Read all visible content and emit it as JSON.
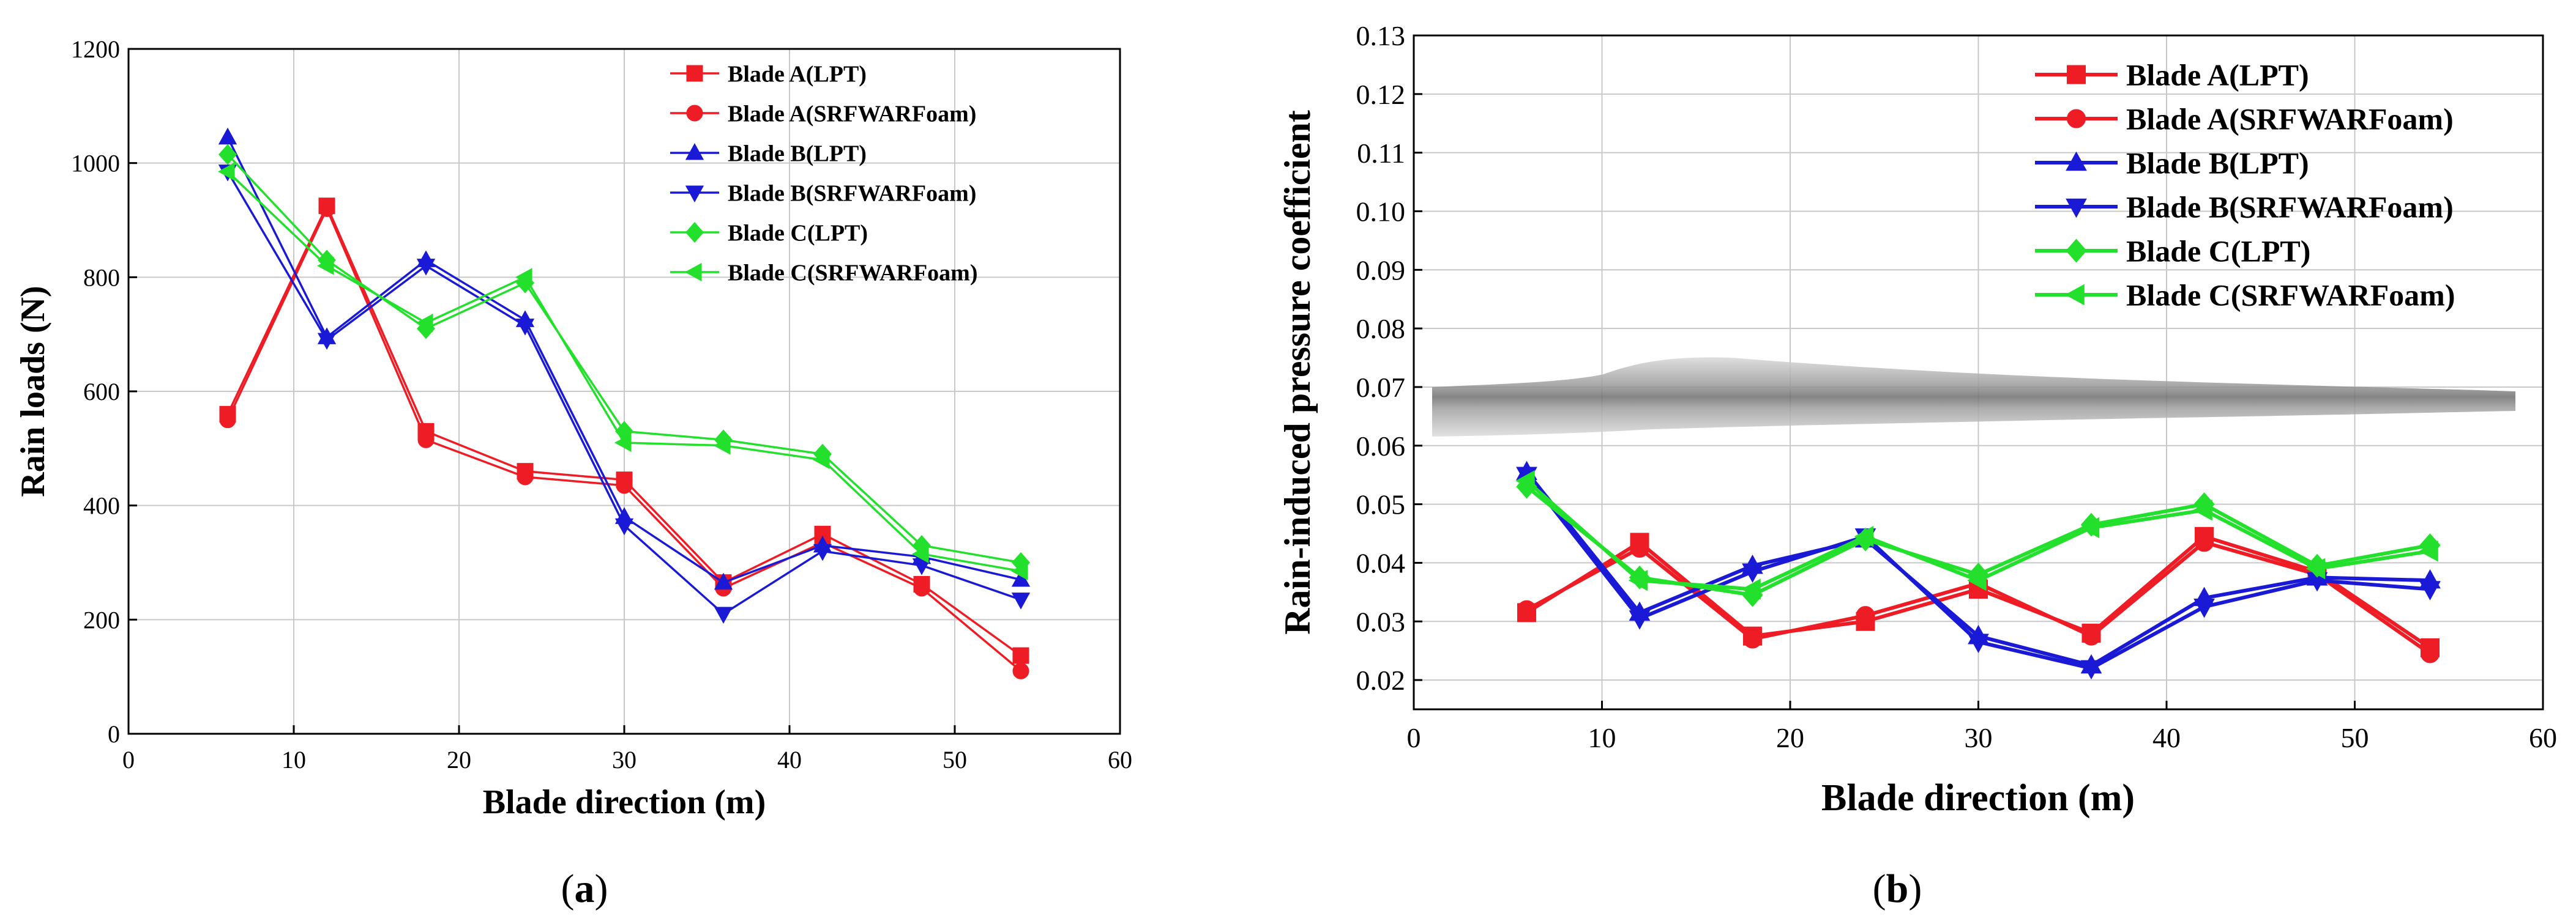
{
  "colors": {
    "red": "#ee1c25",
    "blue": "#1a1ad6",
    "green": "#22e02b"
  },
  "chart_data": [
    {
      "type": "line",
      "caption": "a",
      "xlabel": "Blade direction (m)",
      "ylabel": "Rain loads (N)",
      "xlim": [
        0,
        60
      ],
      "ylim": [
        0,
        1200
      ],
      "xticks": [
        0,
        10,
        20,
        30,
        40,
        50,
        60
      ],
      "yticks": [
        0,
        200,
        400,
        600,
        800,
        1000,
        1200
      ],
      "grid": true,
      "legend": "top-right",
      "x": [
        6,
        12,
        18,
        24,
        30,
        36,
        42,
        48,
        54
      ],
      "series": [
        {
          "name": "Blade A(LPT)",
          "color": "red",
          "marker": "square",
          "values": [
            560,
            925,
            530,
            460,
            445,
            265,
            350,
            262,
            137
          ]
        },
        {
          "name": "Blade A(SRFWARFoam)",
          "color": "red",
          "marker": "circle",
          "values": [
            550,
            920,
            515,
            450,
            435,
            255,
            335,
            255,
            110
          ]
        },
        {
          "name": "Blade B(LPT)",
          "color": "blue",
          "marker": "triangle-up",
          "values": [
            1045,
            695,
            830,
            725,
            380,
            265,
            330,
            310,
            270
          ]
        },
        {
          "name": "Blade B(SRFWARFoam)",
          "color": "blue",
          "marker": "triangle-down",
          "values": [
            985,
            690,
            820,
            715,
            365,
            210,
            320,
            295,
            235
          ]
        },
        {
          "name": "Blade C(LPT)",
          "color": "green",
          "marker": "diamond",
          "values": [
            1015,
            830,
            710,
            790,
            530,
            515,
            490,
            330,
            300
          ]
        },
        {
          "name": "Blade C(SRFWARFoam)",
          "color": "green",
          "marker": "triangle-left",
          "values": [
            985,
            820,
            720,
            800,
            510,
            505,
            480,
            315,
            285
          ]
        }
      ]
    },
    {
      "type": "line",
      "caption": "b",
      "xlabel": "Blade direction (m)",
      "ylabel": "Rain-induced pressure coefficient",
      "xlim": [
        0,
        60
      ],
      "ylim": [
        0.015,
        0.13
      ],
      "xticks": [
        0,
        10,
        20,
        30,
        40,
        50,
        60
      ],
      "yticks": [
        0.02,
        0.03,
        0.04,
        0.05,
        0.06,
        0.07,
        0.08,
        0.09,
        0.1,
        0.11,
        0.12,
        0.13
      ],
      "ytick_labels": [
        "0.02",
        "0.03",
        "0.04",
        "0.05",
        "0.06",
        "0.07",
        "0.08",
        "0.09",
        "0.10",
        "0.11",
        "0.12",
        "0.13"
      ],
      "grid": true,
      "legend": "top-right",
      "x": [
        6,
        12,
        18,
        24,
        30,
        36,
        42,
        48,
        54
      ],
      "series": [
        {
          "name": "Blade A(LPT)",
          "color": "red",
          "marker": "square",
          "values": [
            0.0315,
            0.0435,
            0.0275,
            0.03,
            0.0355,
            0.028,
            0.0445,
            0.0385,
            0.0255
          ]
        },
        {
          "name": "Blade A(SRFWARFoam)",
          "color": "red",
          "marker": "circle",
          "values": [
            0.032,
            0.0425,
            0.027,
            0.031,
            0.0365,
            0.0275,
            0.0435,
            0.038,
            0.0245
          ]
        },
        {
          "name": "Blade B(LPT)",
          "color": "blue",
          "marker": "triangle-up",
          "values": [
            0.0555,
            0.0315,
            0.0395,
            0.044,
            0.0275,
            0.0225,
            0.034,
            0.0375,
            0.037
          ]
        },
        {
          "name": "Blade B(SRFWARFoam)",
          "color": "blue",
          "marker": "triangle-down",
          "values": [
            0.055,
            0.0305,
            0.0385,
            0.0445,
            0.0265,
            0.022,
            0.0325,
            0.037,
            0.0355
          ]
        },
        {
          "name": "Blade C(LPT)",
          "color": "green",
          "marker": "diamond",
          "values": [
            0.053,
            0.0375,
            0.0345,
            0.044,
            0.038,
            0.0465,
            0.05,
            0.0395,
            0.043
          ]
        },
        {
          "name": "Blade C(SRFWARFoam)",
          "color": "green",
          "marker": "triangle-left",
          "values": [
            0.054,
            0.037,
            0.0355,
            0.0445,
            0.037,
            0.046,
            0.049,
            0.039,
            0.042
          ]
        }
      ]
    }
  ]
}
